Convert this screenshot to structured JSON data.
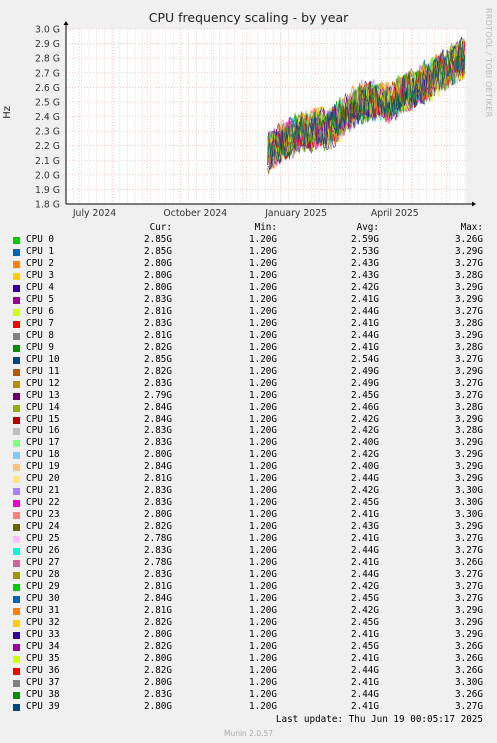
{
  "header": {
    "title": "CPU frequency scaling - by year",
    "watermark": "RRDTOOL / TOBI OETIKER"
  },
  "footer": {
    "last_update": "Last update: Thu Jun 19 00:05:17 2025",
    "version": "Munin 2.0.57"
  },
  "table_headers": {
    "cur": "Cur:",
    "min": "Min:",
    "avg": "Avg:",
    "max": "Max:"
  },
  "chart_data": {
    "type": "line",
    "ylabel": "Hz",
    "ylim": [
      1.8,
      3.0
    ],
    "yticks": [
      "1.8 G",
      "1.9 G",
      "2.0 G",
      "2.1 G",
      "2.2 G",
      "2.3 G",
      "2.4 G",
      "2.5 G",
      "2.6 G",
      "2.7 G",
      "2.8 G",
      "2.9 G",
      "3.0 G"
    ],
    "xlim": [
      "2024-06-19",
      "2025-06-19"
    ],
    "xticks": [
      {
        "label": "July 2024",
        "date": "2024-07-15"
      },
      {
        "label": "October 2024",
        "date": "2024-10-15"
      },
      {
        "label": "January 2025",
        "date": "2025-01-15"
      },
      {
        "label": "April 2025",
        "date": "2025-04-15"
      }
    ],
    "grid": true,
    "data_start": "2024-12-20",
    "trend": [
      {
        "date": "2024-12-20",
        "value": 2.15
      },
      {
        "date": "2025-01-20",
        "value": 2.3
      },
      {
        "date": "2025-02-15",
        "value": 2.32
      },
      {
        "date": "2025-03-15",
        "value": 2.5
      },
      {
        "date": "2025-04-10",
        "value": 2.5
      },
      {
        "date": "2025-05-15",
        "value": 2.65
      },
      {
        "date": "2025-06-18",
        "value": 2.8
      }
    ],
    "series": [
      {
        "name": "CPU 0",
        "color": "#00cc00",
        "cur": "2.85G",
        "min": "1.20G",
        "avg": "2.59G",
        "max": "3.26G"
      },
      {
        "name": "CPU 1",
        "color": "#0066b3",
        "cur": "2.85G",
        "min": "1.20G",
        "avg": "2.53G",
        "max": "3.29G"
      },
      {
        "name": "CPU 2",
        "color": "#ff8000",
        "cur": "2.80G",
        "min": "1.20G",
        "avg": "2.43G",
        "max": "3.27G"
      },
      {
        "name": "CPU 3",
        "color": "#ffcc00",
        "cur": "2.80G",
        "min": "1.20G",
        "avg": "2.43G",
        "max": "3.28G"
      },
      {
        "name": "CPU 4",
        "color": "#330099",
        "cur": "2.80G",
        "min": "1.20G",
        "avg": "2.42G",
        "max": "3.29G"
      },
      {
        "name": "CPU 5",
        "color": "#990099",
        "cur": "2.83G",
        "min": "1.20G",
        "avg": "2.41G",
        "max": "3.29G"
      },
      {
        "name": "CPU 6",
        "color": "#ccff00",
        "cur": "2.81G",
        "min": "1.20G",
        "avg": "2.44G",
        "max": "3.27G"
      },
      {
        "name": "CPU 7",
        "color": "#ff0000",
        "cur": "2.83G",
        "min": "1.20G",
        "avg": "2.41G",
        "max": "3.28G"
      },
      {
        "name": "CPU 8",
        "color": "#808080",
        "cur": "2.81G",
        "min": "1.20G",
        "avg": "2.44G",
        "max": "3.29G"
      },
      {
        "name": "CPU 9",
        "color": "#008f00",
        "cur": "2.82G",
        "min": "1.20G",
        "avg": "2.41G",
        "max": "3.28G"
      },
      {
        "name": "CPU 10",
        "color": "#00487d",
        "cur": "2.85G",
        "min": "1.20G",
        "avg": "2.54G",
        "max": "3.27G"
      },
      {
        "name": "CPU 11",
        "color": "#b35a00",
        "cur": "2.82G",
        "min": "1.20G",
        "avg": "2.49G",
        "max": "3.29G"
      },
      {
        "name": "CPU 12",
        "color": "#b38f00",
        "cur": "2.83G",
        "min": "1.20G",
        "avg": "2.49G",
        "max": "3.27G"
      },
      {
        "name": "CPU 13",
        "color": "#6b006b",
        "cur": "2.79G",
        "min": "1.20G",
        "avg": "2.45G",
        "max": "3.27G"
      },
      {
        "name": "CPU 14",
        "color": "#8fb300",
        "cur": "2.84G",
        "min": "1.20G",
        "avg": "2.46G",
        "max": "3.28G"
      },
      {
        "name": "CPU 15",
        "color": "#b30000",
        "cur": "2.84G",
        "min": "1.20G",
        "avg": "2.42G",
        "max": "3.29G"
      },
      {
        "name": "CPU 16",
        "color": "#bebebe",
        "cur": "2.83G",
        "min": "1.20G",
        "avg": "2.42G",
        "max": "3.28G"
      },
      {
        "name": "CPU 17",
        "color": "#80ff80",
        "cur": "2.83G",
        "min": "1.20G",
        "avg": "2.40G",
        "max": "3.29G"
      },
      {
        "name": "CPU 18",
        "color": "#80c9ff",
        "cur": "2.80G",
        "min": "1.20G",
        "avg": "2.42G",
        "max": "3.29G"
      },
      {
        "name": "CPU 19",
        "color": "#ffc080",
        "cur": "2.84G",
        "min": "1.20G",
        "avg": "2.40G",
        "max": "3.29G"
      },
      {
        "name": "CPU 20",
        "color": "#ffe680",
        "cur": "2.81G",
        "min": "1.20G",
        "avg": "2.44G",
        "max": "3.29G"
      },
      {
        "name": "CPU 21",
        "color": "#aa80ff",
        "cur": "2.83G",
        "min": "1.20G",
        "avg": "2.42G",
        "max": "3.30G"
      },
      {
        "name": "CPU 22",
        "color": "#ee00cc",
        "cur": "2.83G",
        "min": "1.20G",
        "avg": "2.45G",
        "max": "3.30G"
      },
      {
        "name": "CPU 23",
        "color": "#ff8080",
        "cur": "2.80G",
        "min": "1.20G",
        "avg": "2.41G",
        "max": "3.30G"
      },
      {
        "name": "CPU 24",
        "color": "#666600",
        "cur": "2.82G",
        "min": "1.20G",
        "avg": "2.43G",
        "max": "3.29G"
      },
      {
        "name": "CPU 25",
        "color": "#ffbfff",
        "cur": "2.78G",
        "min": "1.20G",
        "avg": "2.41G",
        "max": "3.27G"
      },
      {
        "name": "CPU 26",
        "color": "#00ffcc",
        "cur": "2.83G",
        "min": "1.20G",
        "avg": "2.44G",
        "max": "3.27G"
      },
      {
        "name": "CPU 27",
        "color": "#cc6699",
        "cur": "2.78G",
        "min": "1.20G",
        "avg": "2.41G",
        "max": "3.26G"
      },
      {
        "name": "CPU 28",
        "color": "#999900",
        "cur": "2.83G",
        "min": "1.20G",
        "avg": "2.44G",
        "max": "3.27G"
      },
      {
        "name": "CPU 29",
        "color": "#00cc00",
        "cur": "2.81G",
        "min": "1.20G",
        "avg": "2.42G",
        "max": "3.27G"
      },
      {
        "name": "CPU 30",
        "color": "#0066b3",
        "cur": "2.84G",
        "min": "1.20G",
        "avg": "2.45G",
        "max": "3.27G"
      },
      {
        "name": "CPU 31",
        "color": "#ff8000",
        "cur": "2.81G",
        "min": "1.20G",
        "avg": "2.42G",
        "max": "3.29G"
      },
      {
        "name": "CPU 32",
        "color": "#ffcc00",
        "cur": "2.82G",
        "min": "1.20G",
        "avg": "2.45G",
        "max": "3.29G"
      },
      {
        "name": "CPU 33",
        "color": "#330099",
        "cur": "2.80G",
        "min": "1.20G",
        "avg": "2.41G",
        "max": "3.29G"
      },
      {
        "name": "CPU 34",
        "color": "#990099",
        "cur": "2.82G",
        "min": "1.20G",
        "avg": "2.45G",
        "max": "3.26G"
      },
      {
        "name": "CPU 35",
        "color": "#ccff00",
        "cur": "2.80G",
        "min": "1.20G",
        "avg": "2.41G",
        "max": "3.26G"
      },
      {
        "name": "CPU 36",
        "color": "#ff0000",
        "cur": "2.82G",
        "min": "1.20G",
        "avg": "2.44G",
        "max": "3.26G"
      },
      {
        "name": "CPU 37",
        "color": "#808080",
        "cur": "2.80G",
        "min": "1.20G",
        "avg": "2.41G",
        "max": "3.30G"
      },
      {
        "name": "CPU 38",
        "color": "#008f00",
        "cur": "2.83G",
        "min": "1.20G",
        "avg": "2.44G",
        "max": "3.26G"
      },
      {
        "name": "CPU 39",
        "color": "#00487d",
        "cur": "2.80G",
        "min": "1.20G",
        "avg": "2.41G",
        "max": "3.27G"
      }
    ]
  }
}
